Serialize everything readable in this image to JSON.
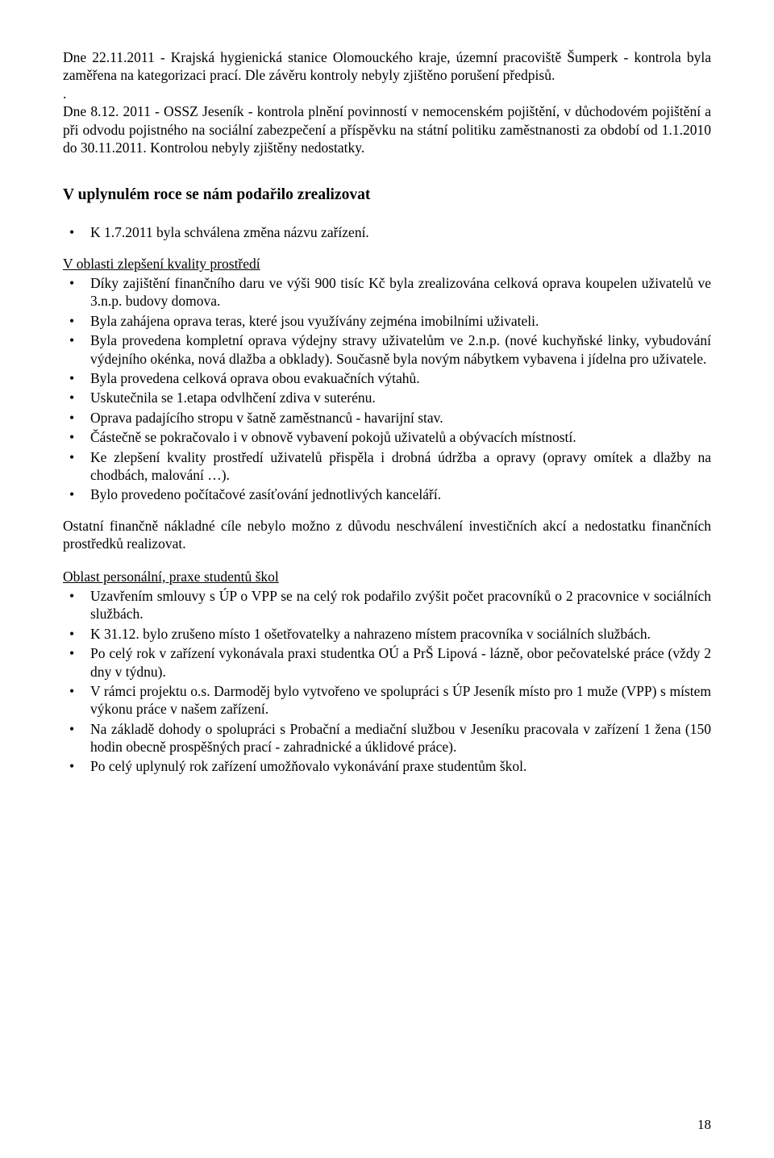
{
  "p1": "Dne  22.11.2011 - Krajská hygienická stanice Olomouckého kraje, územní pracoviště Šumperk -  kontrola byla zaměřena na  kategorizaci prací.  Dle závěru kontroly nebyly zjištěno porušení předpisů.",
  "p1b": ".",
  "p2": "Dne 8.12. 2011 - OSSZ Jeseník - kontrola plnění povinností v nemocenském pojištění, v důchodovém pojištění  a při odvodu pojistného na sociální zabezpečení a příspěvku na státní politiku zaměstnanosti  za období od 1.1.2010 do 30.11.2011. Kontrolou nebyly zjištěny nedostatky.",
  "heading1": "V uplynulém roce se nám podařilo zrealizovat",
  "first_item": "K 1.7.2011 byla schválena změna názvu zařízení.",
  "sec1_title": "V oblasti zlepšení kvality prostředí",
  "sec1_items": [
    "Díky zajištění finančního daru ve výši 900 tisíc Kč byla zrealizována celková oprava koupelen uživatelů ve 3.n.p. budovy domova.",
    "Byla zahájena oprava teras, které jsou využívány zejména imobilními uživateli.",
    "Byla provedena kompletní oprava výdejny stravy uživatelům ve  2.n.p. (nové  kuchyňské linky,  vybudování  výdejního okénka,  nová dlažba a obklady).  Současně  byla  novým nábytkem vybavena i jídelna pro uživatele.",
    "Byla provedena celková oprava obou evakuačních výtahů.",
    "Uskutečnila se 1.etapa odvlhčení zdiva v suterénu.",
    "Oprava padajícího stropu v šatně zaměstnanců - havarijní stav.",
    "Částečně se pokračovalo i v obnově vybavení  pokojů  uživatelů  a  obývacích  místností.",
    "Ke  zlepšení  kvality  prostředí  uživatelů  přispěla i drobná údržba a opravy  (opravy omítek a  dlažby na chodbách, malování …).",
    "Bylo provedeno počítačové zasíťování jednotlivých kanceláří."
  ],
  "p3": "Ostatní  finančně  nákladné cíle nebylo možno z důvodu  neschválení  investičních  akcí a  nedostatku  finančních  prostředků realizovat.",
  "sec2_title": "Oblast personální, praxe studentů škol",
  "sec2_items": [
    "Uzavřením smlouvy s  ÚP o VPP se na celý rok podařilo zvýšit počet  pracovníků o  2 pracovnice v sociálních službách.",
    "K 31.12. bylo zrušeno místo 1 ošetřovatelky a nahrazeno místem pracovníka v sociálních službách.",
    "Po celý rok v zařízení vykonávala praxi studentka OÚ a PrŠ Lipová - lázně,  obor pečovatelské práce  (vždy 2 dny v týdnu).",
    "V rámci  projektu o.s. Darmoděj  bylo  vytvořeno ve spolupráci s  ÚP Jeseník místo pro 1 muže  (VPP) s místem  výkonu práce v našem zařízení.",
    "Na základě  dohody  o  spolupráci  s  Probační a mediační  službou v Jeseníku pracovala v zařízení  1 žena  (150 hodin obecně prospěšných prací -  zahradnické a úklidové práce).",
    "Po celý uplynulý rok zařízení umožňovalo vykonávání praxe studentům škol."
  ],
  "page_number": "18"
}
